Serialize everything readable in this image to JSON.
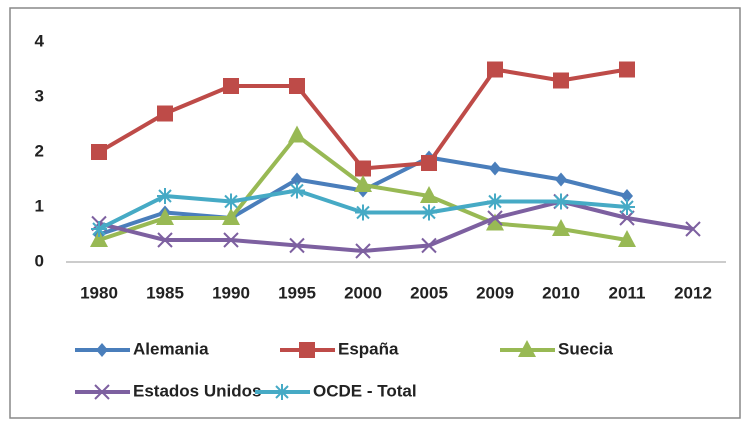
{
  "chart_data": {
    "type": "line",
    "categories": [
      "1980",
      "1985",
      "1990",
      "1995",
      "2000",
      "2005",
      "2009",
      "2010",
      "2011",
      "2012"
    ],
    "ylim": [
      0,
      4
    ],
    "yticks": [
      0,
      1,
      2,
      3,
      4
    ],
    "grid": false,
    "legend": "bottom",
    "series": [
      {
        "name": "Alemania",
        "color": "#4a7ebb",
        "marker": "diamond",
        "values": [
          0.5,
          0.9,
          0.8,
          1.5,
          1.3,
          1.9,
          1.7,
          1.5,
          1.2,
          null
        ]
      },
      {
        "name": "España",
        "color": "#be4b48",
        "marker": "square",
        "values": [
          2.0,
          2.7,
          3.2,
          3.2,
          1.7,
          1.8,
          3.5,
          3.3,
          3.5,
          null
        ]
      },
      {
        "name": "Suecia",
        "color": "#98b954",
        "marker": "triangle",
        "values": [
          0.4,
          0.8,
          0.8,
          2.3,
          1.4,
          1.2,
          0.7,
          0.6,
          0.4,
          null
        ]
      },
      {
        "name": "Estados Unidos",
        "color": "#7d60a0",
        "marker": "x",
        "values": [
          0.7,
          0.4,
          0.4,
          0.3,
          0.2,
          0.3,
          0.8,
          1.1,
          0.8,
          0.6
        ]
      },
      {
        "name": "OCDE - Total",
        "color": "#46aac5",
        "marker": "star",
        "values": [
          0.6,
          1.2,
          1.1,
          1.3,
          0.9,
          0.9,
          1.1,
          1.1,
          1.0,
          null
        ]
      }
    ]
  }
}
